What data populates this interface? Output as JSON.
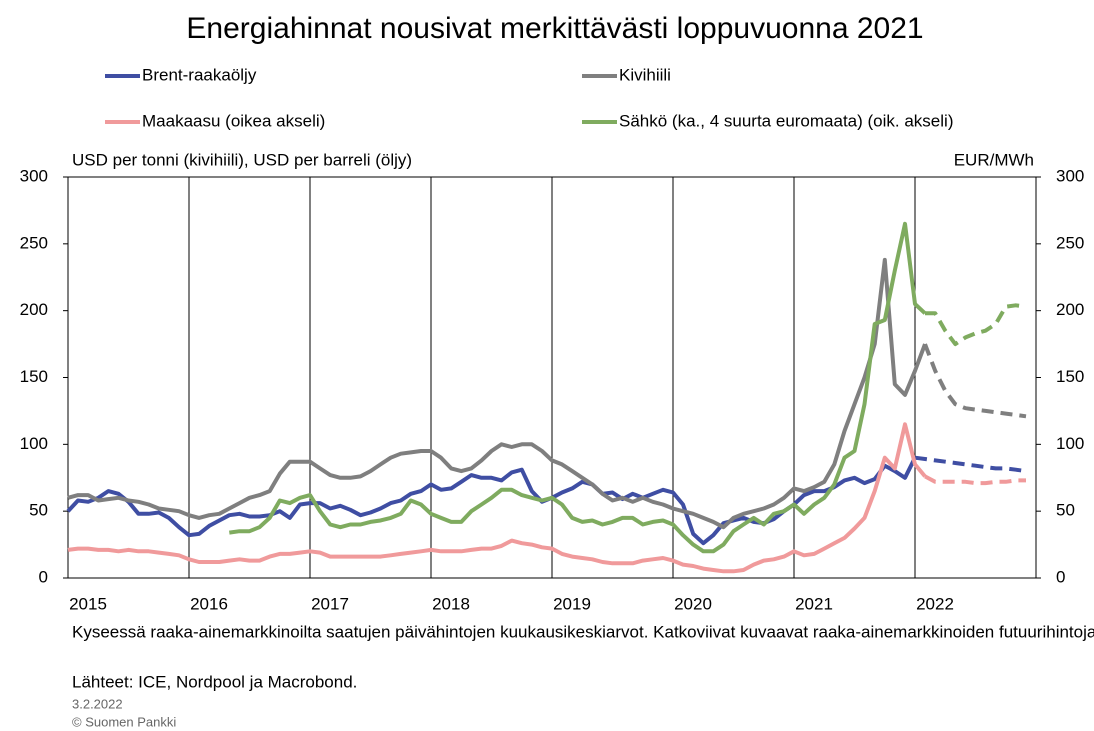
{
  "chart_data": {
    "type": "line",
    "title": "Energiahinnat nousivat merkittävästi loppuvuonna 2021",
    "y_label": "USD per tonni (kivihiili), USD per barreli (öljy)",
    "y2_label": "EUR/MWh",
    "note": "Kyseessä raaka-ainemarkkinoilta  saatujen päivähintojen kuukausikeskiarvot.  Katkoviivat kuvaavat raaka-ainemarkkinoiden  futuurihintoja.",
    "source": "Lähteet: ICE, Nordpool ja Macrobond.",
    "date": "3.2.2022",
    "copyright": "© Suomen  Pankki",
    "xlim": [
      2015,
      2023
    ],
    "xticks": [
      2015,
      2016,
      2017,
      2018,
      2019,
      2020,
      2021,
      2022
    ],
    "ylim": [
      0,
      300
    ],
    "yticks": [
      0,
      50,
      100,
      150,
      200,
      250,
      300
    ],
    "y2lim": [
      0,
      300
    ],
    "y2ticks": [
      0,
      50,
      100,
      150,
      200,
      250,
      300
    ],
    "grid": "x",
    "x": [
      2015,
      2015.083,
      2015.167,
      2015.25,
      2015.333,
      2015.417,
      2015.5,
      2015.583,
      2015.667,
      2015.75,
      2015.833,
      2015.917,
      2016,
      2016.083,
      2016.167,
      2016.25,
      2016.333,
      2016.417,
      2016.5,
      2016.583,
      2016.667,
      2016.75,
      2016.833,
      2016.917,
      2017,
      2017.083,
      2017.167,
      2017.25,
      2017.333,
      2017.417,
      2017.5,
      2017.583,
      2017.667,
      2017.75,
      2017.833,
      2017.917,
      2018,
      2018.083,
      2018.167,
      2018.25,
      2018.333,
      2018.417,
      2018.5,
      2018.583,
      2018.667,
      2018.75,
      2018.833,
      2018.917,
      2019,
      2019.083,
      2019.167,
      2019.25,
      2019.333,
      2019.417,
      2019.5,
      2019.583,
      2019.667,
      2019.75,
      2019.833,
      2019.917,
      2020,
      2020.083,
      2020.167,
      2020.25,
      2020.333,
      2020.417,
      2020.5,
      2020.583,
      2020.667,
      2020.75,
      2020.833,
      2020.917,
      2021,
      2021.083,
      2021.167,
      2021.25,
      2021.333,
      2021.417,
      2021.5,
      2021.583,
      2021.667,
      2021.75,
      2021.833,
      2021.917,
      2022,
      2022.083,
      2022.167,
      2022.25,
      2022.333,
      2022.417,
      2022.5,
      2022.583,
      2022.667,
      2022.75,
      2022.833,
      2022.917
    ],
    "series": [
      {
        "name": "Brent-raakaöljy",
        "color": "#3f4ea3",
        "axis": "y",
        "values": [
          50,
          58,
          57,
          60,
          65,
          63,
          57,
          48,
          48,
          49,
          45,
          38,
          32,
          33,
          39,
          43,
          47,
          48,
          46,
          46,
          47,
          50,
          45,
          55,
          56,
          56,
          52,
          54,
          51,
          47,
          49,
          52,
          56,
          58,
          63,
          65,
          70,
          66,
          67,
          72,
          77,
          75,
          75,
          73,
          79,
          81,
          65,
          57,
          60,
          64,
          67,
          72,
          70,
          63,
          64,
          59,
          63,
          60,
          63,
          66,
          64,
          55,
          33,
          26,
          32,
          41,
          43,
          45,
          42,
          41,
          44,
          50,
          55,
          62,
          65,
          65,
          68,
          73,
          75,
          71,
          74,
          84,
          80,
          75,
          90,
          null,
          null,
          null,
          null,
          null,
          null,
          null,
          null,
          null,
          null,
          null
        ],
        "futures": [
          null,
          null,
          null,
          null,
          null,
          null,
          null,
          null,
          null,
          null,
          null,
          null,
          null,
          null,
          null,
          null,
          null,
          null,
          null,
          null,
          null,
          null,
          null,
          null,
          null,
          null,
          null,
          null,
          null,
          null,
          null,
          null,
          null,
          null,
          null,
          null,
          null,
          null,
          null,
          null,
          null,
          null,
          null,
          null,
          null,
          null,
          null,
          null,
          null,
          null,
          null,
          null,
          null,
          null,
          null,
          null,
          null,
          null,
          null,
          null,
          null,
          null,
          null,
          null,
          null,
          null,
          null,
          null,
          null,
          null,
          null,
          null,
          null,
          null,
          null,
          null,
          null,
          null,
          null,
          null,
          null,
          null,
          null,
          null,
          90,
          89,
          88,
          87,
          86,
          85,
          84,
          83,
          82,
          82,
          81,
          80
        ]
      },
      {
        "name": "Kivihiili",
        "color": "#7f7f7f",
        "axis": "y",
        "values": [
          60,
          62,
          62,
          58,
          59,
          60,
          58,
          57,
          55,
          52,
          51,
          50,
          47,
          45,
          47,
          48,
          52,
          56,
          60,
          62,
          65,
          78,
          87,
          87,
          87,
          82,
          77,
          75,
          75,
          76,
          80,
          85,
          90,
          93,
          94,
          95,
          95,
          90,
          82,
          80,
          82,
          88,
          95,
          100,
          98,
          100,
          100,
          95,
          88,
          85,
          80,
          75,
          70,
          63,
          58,
          60,
          57,
          60,
          57,
          55,
          52,
          50,
          48,
          45,
          42,
          38,
          45,
          48,
          50,
          52,
          55,
          60,
          67,
          65,
          68,
          72,
          85,
          110,
          130,
          150,
          175,
          238,
          145,
          137,
          155,
          175,
          null,
          null,
          null,
          null,
          null,
          null,
          null,
          null,
          null,
          null
        ],
        "futures": [
          null,
          null,
          null,
          null,
          null,
          null,
          null,
          null,
          null,
          null,
          null,
          null,
          null,
          null,
          null,
          null,
          null,
          null,
          null,
          null,
          null,
          null,
          null,
          null,
          null,
          null,
          null,
          null,
          null,
          null,
          null,
          null,
          null,
          null,
          null,
          null,
          null,
          null,
          null,
          null,
          null,
          null,
          null,
          null,
          null,
          null,
          null,
          null,
          null,
          null,
          null,
          null,
          null,
          null,
          null,
          null,
          null,
          null,
          null,
          null,
          null,
          null,
          null,
          null,
          null,
          null,
          null,
          null,
          null,
          null,
          null,
          null,
          null,
          null,
          null,
          null,
          null,
          null,
          null,
          null,
          null,
          null,
          null,
          null,
          null,
          175,
          155,
          140,
          130,
          127,
          126,
          125,
          124,
          123,
          122,
          121
        ]
      },
      {
        "name": "Maakaasu (oikea akseli)",
        "color": "#f09a9b",
        "axis": "y2",
        "values": [
          21,
          22,
          22,
          21,
          21,
          20,
          21,
          20,
          20,
          19,
          18,
          17,
          14,
          12,
          12,
          12,
          13,
          14,
          13,
          13,
          16,
          18,
          18,
          19,
          20,
          19,
          16,
          16,
          16,
          16,
          16,
          16,
          17,
          18,
          19,
          20,
          21,
          20,
          20,
          20,
          21,
          22,
          22,
          24,
          28,
          26,
          25,
          23,
          22,
          18,
          16,
          15,
          14,
          12,
          11,
          11,
          11,
          13,
          14,
          15,
          13,
          10,
          9,
          7,
          6,
          5,
          5,
          6,
          10,
          13,
          14,
          16,
          20,
          17,
          18,
          22,
          26,
          30,
          37,
          45,
          65,
          90,
          82,
          115,
          85,
          76,
          null,
          null,
          null,
          null,
          null,
          null,
          null,
          null,
          null,
          null
        ],
        "futures": [
          null,
          null,
          null,
          null,
          null,
          null,
          null,
          null,
          null,
          null,
          null,
          null,
          null,
          null,
          null,
          null,
          null,
          null,
          null,
          null,
          null,
          null,
          null,
          null,
          null,
          null,
          null,
          null,
          null,
          null,
          null,
          null,
          null,
          null,
          null,
          null,
          null,
          null,
          null,
          null,
          null,
          null,
          null,
          null,
          null,
          null,
          null,
          null,
          null,
          null,
          null,
          null,
          null,
          null,
          null,
          null,
          null,
          null,
          null,
          null,
          null,
          null,
          null,
          null,
          null,
          null,
          null,
          null,
          null,
          null,
          null,
          null,
          null,
          null,
          null,
          null,
          null,
          null,
          null,
          null,
          null,
          null,
          null,
          null,
          null,
          76,
          72,
          72,
          72,
          72,
          71,
          71,
          72,
          72,
          73,
          73
        ]
      },
      {
        "name": "Sähkö (ka., 4 suurta euromaata) (oik. akseli)",
        "color": "#7fab5f",
        "axis": "y2",
        "values": [
          null,
          null,
          null,
          null,
          null,
          null,
          null,
          null,
          null,
          null,
          null,
          null,
          null,
          null,
          null,
          null,
          34,
          35,
          35,
          38,
          45,
          58,
          56,
          60,
          62,
          50,
          40,
          38,
          40,
          40,
          42,
          43,
          45,
          48,
          58,
          55,
          48,
          45,
          42,
          42,
          50,
          55,
          60,
          66,
          66,
          62,
          60,
          58,
          60,
          55,
          45,
          42,
          43,
          40,
          42,
          45,
          45,
          40,
          42,
          43,
          40,
          32,
          25,
          20,
          20,
          25,
          35,
          40,
          45,
          40,
          48,
          50,
          55,
          48,
          55,
          60,
          70,
          90,
          95,
          130,
          190,
          193,
          230,
          265,
          205,
          198,
          null,
          null,
          null,
          null,
          null,
          null,
          null,
          null,
          null,
          null
        ],
        "futures": [
          null,
          null,
          null,
          null,
          null,
          null,
          null,
          null,
          null,
          null,
          null,
          null,
          null,
          null,
          null,
          null,
          null,
          null,
          null,
          null,
          null,
          null,
          null,
          null,
          null,
          null,
          null,
          null,
          null,
          null,
          null,
          null,
          null,
          null,
          null,
          null,
          null,
          null,
          null,
          null,
          null,
          null,
          null,
          null,
          null,
          null,
          null,
          null,
          null,
          null,
          null,
          null,
          null,
          null,
          null,
          null,
          null,
          null,
          null,
          null,
          null,
          null,
          null,
          null,
          null,
          null,
          null,
          null,
          null,
          null,
          null,
          null,
          null,
          null,
          null,
          null,
          null,
          null,
          null,
          null,
          null,
          null,
          null,
          null,
          null,
          198,
          198,
          185,
          175,
          180,
          183,
          185,
          190,
          203,
          204,
          203
        ]
      }
    ]
  }
}
